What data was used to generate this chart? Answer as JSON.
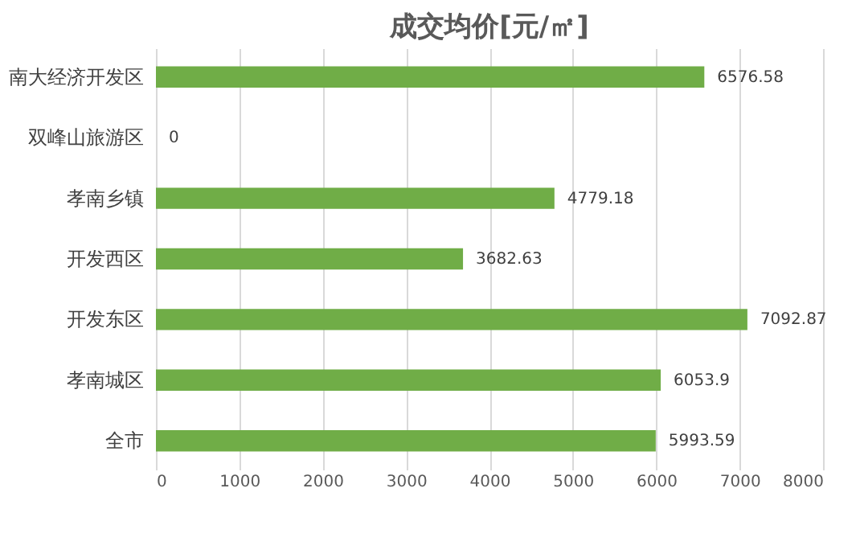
{
  "chart_data": {
    "type": "bar",
    "orientation": "horizontal",
    "title": "成交均价[元/㎡]",
    "categories": [
      "南大经济开发区",
      "双峰山旅游区",
      "孝南乡镇",
      "开发西区",
      "开发东区",
      "孝南城区",
      "全市"
    ],
    "values": [
      6576.58,
      0,
      4779.18,
      3682.63,
      7092.87,
      6053.9,
      5993.59
    ],
    "color": "#70ad47",
    "xlim": [
      0,
      8000
    ],
    "xticks": [
      0,
      1000,
      2000,
      3000,
      4000,
      5000,
      6000,
      7000,
      8000
    ],
    "grid": "x",
    "data_labels": true
  }
}
